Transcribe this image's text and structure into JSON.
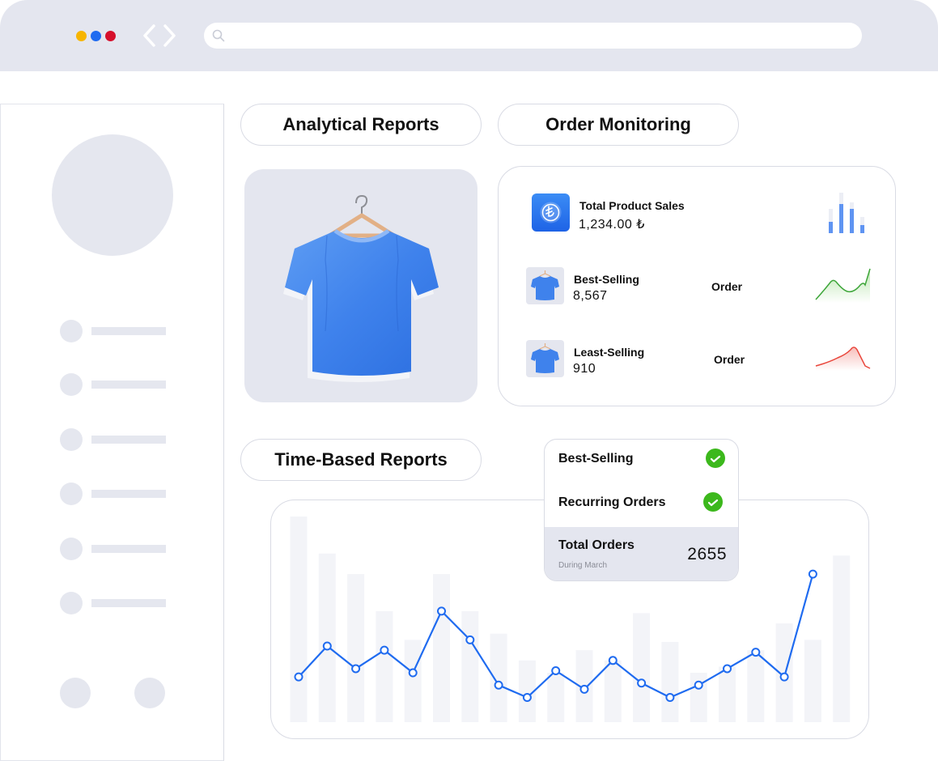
{
  "colors": {
    "accent": "#1f6bf0",
    "bar": "#f3f4f8",
    "success": "#3cb81c",
    "panel": "#e4e6ef"
  },
  "tabs": {
    "analytical": "Analytical Reports",
    "order_monitoring": "Order Monitoring",
    "time_based": "Time-Based Reports"
  },
  "order_card": {
    "total_sales": {
      "title": "Total Product Sales",
      "value": "1,234.00 ₺"
    },
    "best_selling": {
      "title": "Best-Selling",
      "value": "8,567",
      "tag": "Order"
    },
    "least_selling": {
      "title": "Least-Selling",
      "value": "910",
      "tag": "Order"
    }
  },
  "popup": {
    "item1": "Best-Selling",
    "item2": "Recurring Orders",
    "total_label": "Total Orders",
    "total_sub": "During March",
    "total_value": "2655"
  },
  "chart_data": {
    "type": "line",
    "bars": [
      100,
      82,
      72,
      54,
      40,
      72,
      54,
      43,
      30,
      24,
      35,
      30,
      53,
      39,
      24,
      27,
      35,
      48,
      40,
      81
    ],
    "line": [
      22,
      37,
      26,
      35,
      24,
      54,
      40,
      18,
      12,
      25,
      16,
      30,
      19,
      12,
      18,
      26,
      34,
      22,
      72
    ],
    "ylim": [
      0,
      100
    ]
  }
}
